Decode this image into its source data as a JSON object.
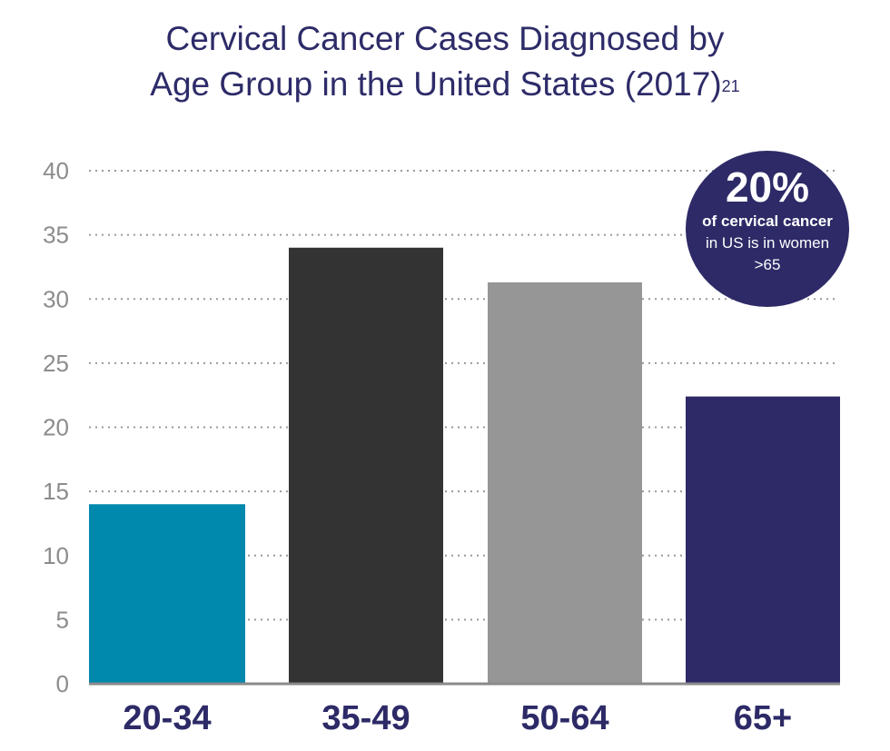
{
  "chart_data": {
    "type": "bar",
    "title": "Cervical Cancer Cases Diagnosed by Age Group in the United States (2017)",
    "title_lines": [
      "Cervical Cancer Cases Diagnosed by",
      "Age Group in the United States (2017)"
    ],
    "title_superscript": "21",
    "categories": [
      "20-34",
      "35-49",
      "50-64",
      "65+"
    ],
    "values": [
      14,
      34,
      31.3,
      22.4
    ],
    "colors": [
      "#0089ad",
      "#333333",
      "#969696",
      "#2d2a67"
    ],
    "ylim": [
      0,
      40
    ],
    "yticks": [
      0,
      5,
      10,
      15,
      20,
      25,
      30,
      35,
      40
    ],
    "grid": "dotted-horizontal",
    "xlabel": "",
    "ylabel": ""
  },
  "callout": {
    "value": "20%",
    "line1": "of cervical cancer",
    "line2": "in US is in women",
    "line3": ">65"
  }
}
